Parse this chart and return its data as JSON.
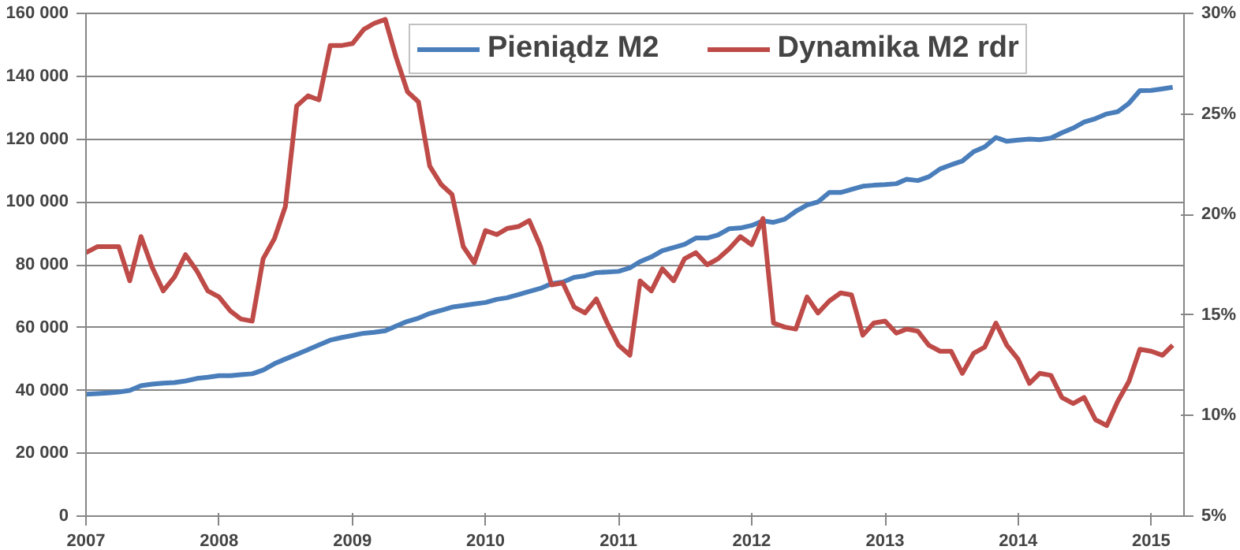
{
  "chart_data": {
    "type": "line",
    "x": [
      "2007-01",
      "2007-02",
      "2007-03",
      "2007-04",
      "2007-05",
      "2007-06",
      "2007-07",
      "2007-08",
      "2007-09",
      "2007-10",
      "2007-11",
      "2007-12",
      "2008-01",
      "2008-02",
      "2008-03",
      "2008-04",
      "2008-05",
      "2008-06",
      "2008-07",
      "2008-08",
      "2008-09",
      "2008-10",
      "2008-11",
      "2008-12",
      "2009-01",
      "2009-02",
      "2009-03",
      "2009-04",
      "2009-05",
      "2009-06",
      "2009-07",
      "2009-08",
      "2009-09",
      "2009-10",
      "2009-11",
      "2009-12",
      "2010-01",
      "2010-02",
      "2010-03",
      "2010-04",
      "2010-05",
      "2010-06",
      "2010-07",
      "2010-08",
      "2010-09",
      "2010-10",
      "2010-11",
      "2010-12",
      "2011-01",
      "2011-02",
      "2011-03",
      "2011-04",
      "2011-05",
      "2011-06",
      "2011-07",
      "2011-08",
      "2011-09",
      "2011-10",
      "2011-11",
      "2011-12",
      "2012-01",
      "2012-02",
      "2012-03",
      "2012-04",
      "2012-05",
      "2012-06",
      "2012-07",
      "2012-08",
      "2012-09",
      "2012-10",
      "2012-11",
      "2012-12",
      "2013-01",
      "2013-02",
      "2013-03",
      "2013-04",
      "2013-05",
      "2013-06",
      "2013-07",
      "2013-08",
      "2013-09",
      "2013-10",
      "2013-11",
      "2013-12",
      "2014-01",
      "2014-02",
      "2014-03",
      "2014-04",
      "2014-05",
      "2014-06",
      "2014-07",
      "2014-08",
      "2014-09",
      "2014-10",
      "2014-11",
      "2014-12",
      "2015-01",
      "2015-02",
      "2015-03"
    ],
    "xlim": [
      "2007-01",
      "2015-04"
    ],
    "xticks": [
      {
        "value": "2007-01",
        "label": "2007"
      },
      {
        "value": "2008-01",
        "label": "2008"
      },
      {
        "value": "2009-01",
        "label": "2009"
      },
      {
        "value": "2010-01",
        "label": "2010"
      },
      {
        "value": "2011-01",
        "label": "2011"
      },
      {
        "value": "2012-01",
        "label": "2012"
      },
      {
        "value": "2013-01",
        "label": "2013"
      },
      {
        "value": "2014-01",
        "label": "2014"
      },
      {
        "value": "2015-01",
        "label": "2015"
      }
    ],
    "ylim": [
      0,
      160000
    ],
    "yticks": [
      {
        "value": 0,
        "label": "0"
      },
      {
        "value": 20000,
        "label": "20 000"
      },
      {
        "value": 40000,
        "label": "40 000"
      },
      {
        "value": 60000,
        "label": "60 000"
      },
      {
        "value": 80000,
        "label": "80 000"
      },
      {
        "value": 100000,
        "label": "100 000"
      },
      {
        "value": 120000,
        "label": "120 000"
      },
      {
        "value": 140000,
        "label": "140 000"
      },
      {
        "value": 160000,
        "label": "160 000"
      }
    ],
    "y2lim": [
      5,
      30
    ],
    "y2ticks": [
      {
        "value": 5,
        "label": "5%"
      },
      {
        "value": 10,
        "label": "10%"
      },
      {
        "value": 15,
        "label": "15%"
      },
      {
        "value": 20,
        "label": "20%"
      },
      {
        "value": 25,
        "label": "25%"
      },
      {
        "value": 30,
        "label": "30%"
      }
    ],
    "grid": "y",
    "legend": "top",
    "series": [
      {
        "name": "Pieniądz M2",
        "color": "#4a7ebb",
        "values": [
          38800,
          39000,
          39200,
          39500,
          40000,
          41500,
          42000,
          42300,
          42500,
          43000,
          43800,
          44200,
          44700,
          44700,
          45000,
          45300,
          46500,
          48500,
          50000,
          51500,
          53000,
          54500,
          56000,
          56800,
          57500,
          58200,
          58500,
          59000,
          60500,
          62000,
          63000,
          64500,
          65500,
          66500,
          67000,
          67500,
          68000,
          69000,
          69500,
          70500,
          71500,
          72500,
          74000,
          74500,
          76000,
          76500,
          77500,
          77700,
          77900,
          79000,
          81000,
          82500,
          84500,
          85500,
          86500,
          88500,
          88500,
          89500,
          91500,
          91700,
          92500,
          94000,
          93500,
          94500,
          97000,
          99000,
          100000,
          103000,
          103000,
          104000,
          105000,
          105300,
          105500,
          105800,
          107200,
          106800,
          108000,
          110500,
          111800,
          113000,
          116000,
          117500,
          120500,
          119300,
          119700,
          120000,
          119800,
          120300,
          122000,
          123500,
          125400,
          126500,
          128000,
          128700,
          131400,
          135400,
          135500,
          136000,
          136500
        ]
      },
      {
        "name": "Dynamika M2 rdr",
        "color": "#be4b48",
        "axis": "y2",
        "values": [
          18.1,
          18.4,
          18.4,
          18.4,
          16.7,
          18.9,
          17.4,
          16.2,
          16.9,
          18.0,
          17.2,
          16.2,
          15.9,
          15.2,
          14.8,
          14.7,
          17.8,
          18.8,
          20.4,
          25.4,
          25.9,
          25.7,
          28.4,
          28.4,
          28.5,
          29.2,
          29.5,
          29.7,
          27.8,
          26.1,
          25.6,
          22.4,
          21.5,
          21.0,
          18.4,
          17.6,
          19.2,
          19.0,
          19.3,
          19.4,
          19.7,
          18.4,
          16.5,
          16.6,
          15.4,
          15.1,
          15.8,
          14.6,
          13.5,
          13.0,
          16.7,
          16.2,
          17.3,
          16.7,
          17.8,
          18.1,
          17.5,
          17.8,
          18.3,
          18.9,
          18.5,
          19.8,
          14.6,
          14.4,
          14.3,
          15.9,
          15.1,
          15.7,
          16.1,
          16.0,
          14.0,
          14.6,
          14.7,
          14.1,
          14.3,
          14.2,
          13.5,
          13.2,
          13.2,
          12.1,
          13.1,
          13.4,
          14.6,
          13.5,
          12.8,
          11.6,
          12.1,
          12.0,
          10.9,
          10.6,
          10.9,
          9.8,
          9.5,
          10.7,
          11.7,
          13.3,
          13.2,
          13.0,
          13.5
        ]
      }
    ]
  }
}
